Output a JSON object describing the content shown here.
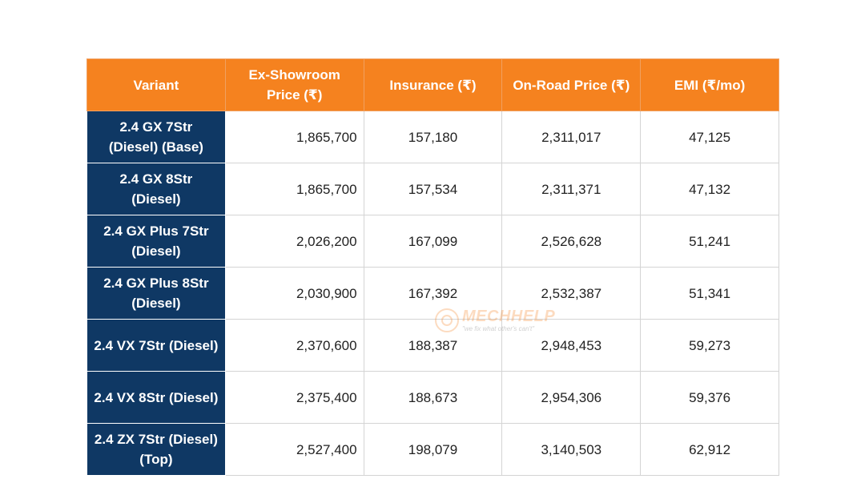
{
  "table": {
    "headers": [
      "Variant",
      "Ex-Showroom Price (₹)",
      "Insurance (₹)",
      "On-Road Price (₹)",
      "EMI (₹/mo)"
    ],
    "rows": [
      [
        "2.4 GX 7Str (Diesel) (Base)",
        "1,865,700",
        "157,180",
        "2,311,017",
        "47,125"
      ],
      [
        "2.4 GX 8Str (Diesel)",
        "1,865,700",
        "157,534",
        "2,311,371",
        "47,132"
      ],
      [
        "2.4 GX Plus 7Str (Diesel)",
        "2,026,200",
        "167,099",
        "2,526,628",
        "51,241"
      ],
      [
        "2.4 GX Plus 8Str (Diesel)",
        "2,030,900",
        "167,392",
        "2,532,387",
        "51,341"
      ],
      [
        "2.4 VX 7Str (Diesel)",
        "2,370,600",
        "188,387",
        "2,948,453",
        "59,273"
      ],
      [
        "2.4 VX 8Str (Diesel)",
        "2,375,400",
        "188,673",
        "2,954,306",
        "59,376"
      ],
      [
        "2.4 ZX 7Str (Diesel) (Top)",
        "2,527,400",
        "198,079",
        "3,140,503",
        "62,912"
      ]
    ]
  },
  "watermark": {
    "brand_part1": "MECH",
    "brand_part2": "HELP",
    "tagline": "\"we fix what other's can't\""
  },
  "colors": {
    "header_bg": "#f5821f",
    "variant_bg": "#0f3864",
    "text": "#222222",
    "border": "#d4d4d4"
  }
}
